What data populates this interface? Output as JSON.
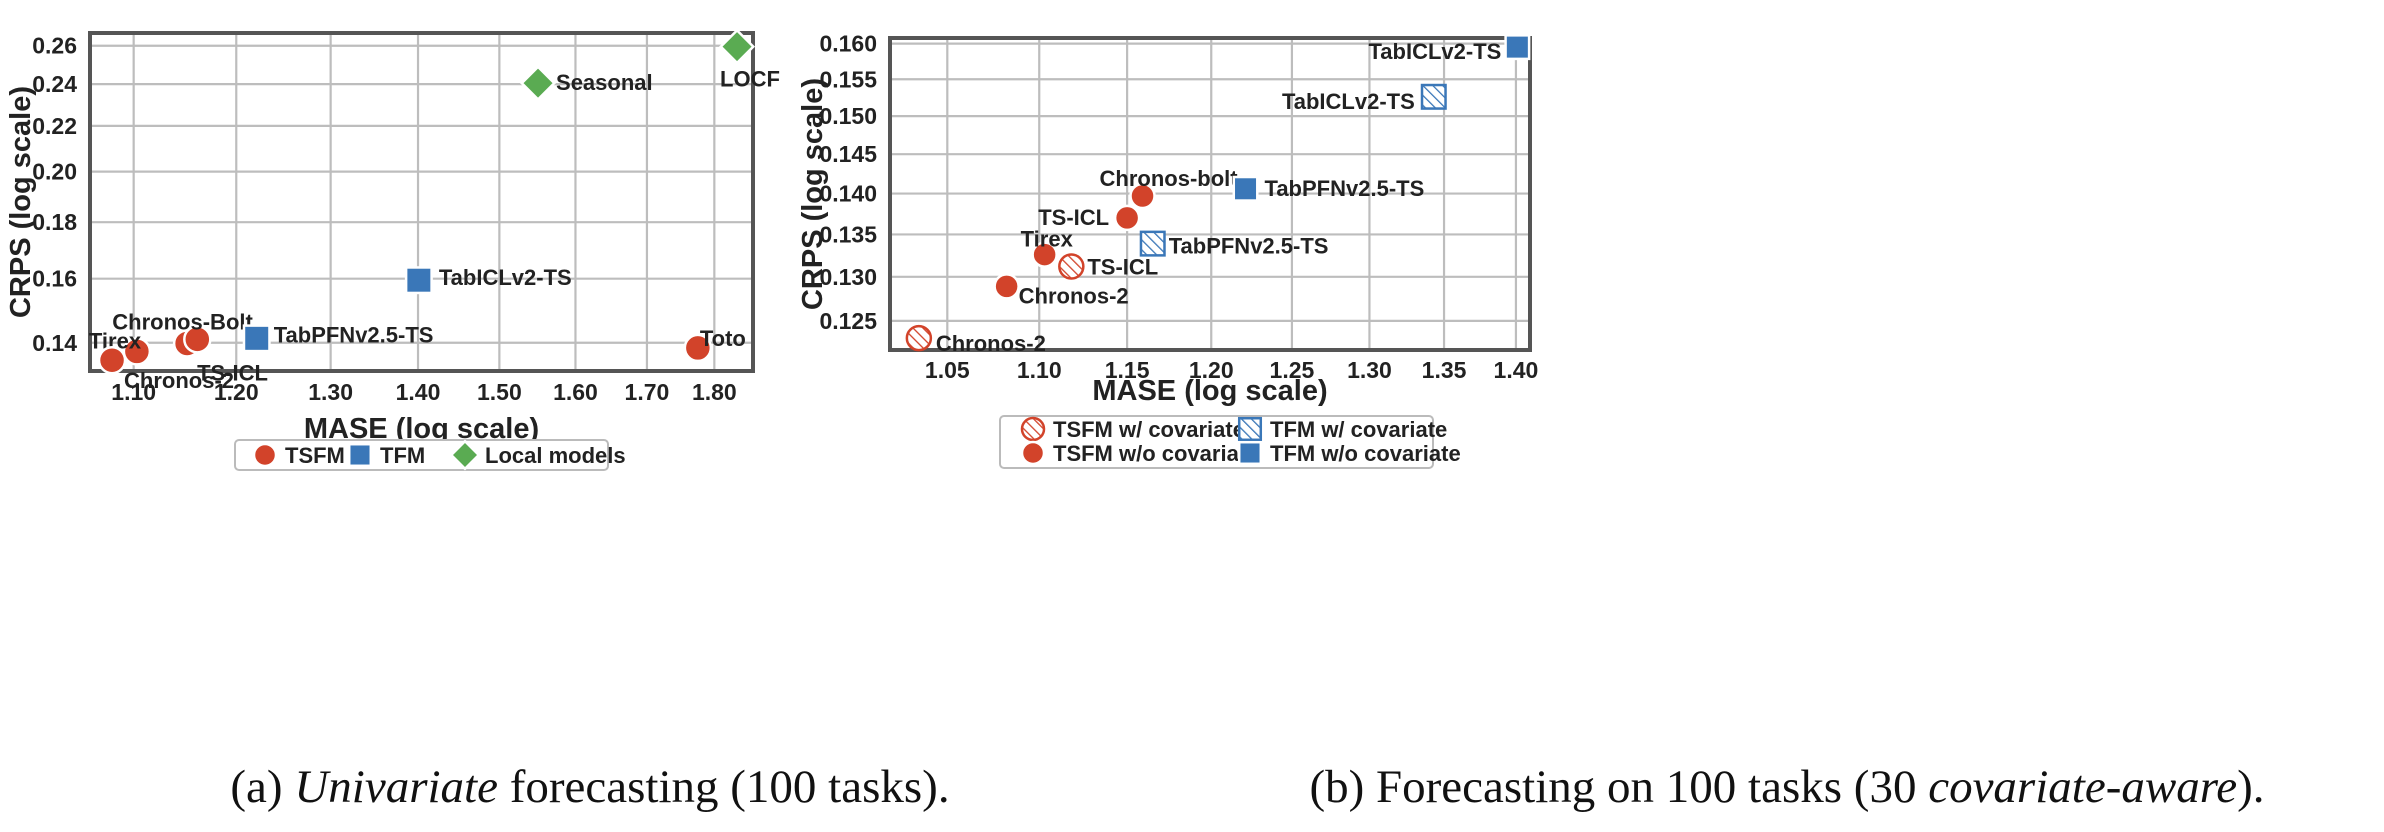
{
  "chart_data": [
    {
      "type": "scatter",
      "xlabel": "MASE (log scale)",
      "ylabel": "CRPS (log scale)",
      "xscale": "log",
      "yscale": "log",
      "xlim": [
        1.06,
        1.86
      ],
      "ylim": [
        0.132,
        0.267
      ],
      "xticks": [
        1.1,
        1.2,
        1.3,
        1.4,
        1.5,
        1.6,
        1.7,
        1.8
      ],
      "xtick_labels": [
        "1.10",
        "1.20",
        "1.30",
        "1.40",
        "1.50",
        "1.60",
        "1.70",
        "1.80"
      ],
      "yticks": [
        0.14,
        0.16,
        0.18,
        0.2,
        0.22,
        0.24,
        0.26
      ],
      "ytick_labels": [
        "0.14",
        "0.16",
        "0.18",
        "0.20",
        "0.22",
        "0.24",
        "0.26"
      ],
      "grid": true,
      "legend_position": "bottom-center",
      "legend": [
        {
          "label": "TSFM",
          "marker": "circle",
          "color": "#d2432a"
        },
        {
          "label": "TFM",
          "marker": "square",
          "color": "#3a77b8"
        },
        {
          "label": "Local models",
          "marker": "diamond",
          "color": "#5aab52"
        }
      ],
      "points": [
        {
          "label": "Tirex",
          "x": 1.103,
          "y": 0.1375,
          "group": "TSFM",
          "marker": "circle",
          "color": "#d2432a"
        },
        {
          "label": "Chronos-2",
          "x": 1.08,
          "y": 0.135,
          "group": "TSFM",
          "marker": "circle",
          "color": "#d2432a"
        },
        {
          "label": "TS-ICL",
          "x": 1.151,
          "y": 0.1398,
          "group": "TSFM",
          "marker": "circle",
          "color": "#d2432a"
        },
        {
          "label": "Chronos-Bolt",
          "x": 1.161,
          "y": 0.141,
          "group": "TSFM",
          "marker": "circle",
          "color": "#d2432a"
        },
        {
          "label": "Toto",
          "x": 1.775,
          "y": 0.1385,
          "group": "TSFM",
          "marker": "circle",
          "color": "#d2432a"
        },
        {
          "label": "TabPFNv2.5-TS",
          "x": 1.221,
          "y": 0.1413,
          "group": "TFM",
          "marker": "square",
          "color": "#3a77b8"
        },
        {
          "label": "TabICLv2-TS",
          "x": 1.401,
          "y": 0.1595,
          "group": "TFM",
          "marker": "square",
          "color": "#3a77b8"
        },
        {
          "label": "Seasonal",
          "x": 1.55,
          "y": 0.2405,
          "group": "Local models",
          "marker": "diamond",
          "color": "#5aab52"
        },
        {
          "label": "LOCF",
          "x": 1.835,
          "y": 0.2595,
          "group": "Local models",
          "marker": "diamond",
          "color": "#5aab52"
        }
      ],
      "caption": {
        "prefix": "(a) ",
        "emphasis": "Univariate",
        "suffix": " forecasting (100 tasks)."
      }
    },
    {
      "type": "scatter",
      "xlabel": "MASE (log scale)",
      "ylabel": "CRPS (log scale)",
      "xscale": "log",
      "yscale": "log",
      "xlim": [
        1.02,
        1.41
      ],
      "ylim": [
        0.1218,
        0.1608
      ],
      "xticks": [
        1.05,
        1.1,
        1.15,
        1.2,
        1.25,
        1.3,
        1.35,
        1.4
      ],
      "xtick_labels": [
        "1.05",
        "1.10",
        "1.15",
        "1.20",
        "1.25",
        "1.30",
        "1.35",
        "1.40"
      ],
      "yticks": [
        0.125,
        0.13,
        0.135,
        0.14,
        0.145,
        0.15,
        0.155,
        0.16
      ],
      "ytick_labels": [
        "0.125",
        "0.130",
        "0.135",
        "0.140",
        "0.145",
        "0.150",
        "0.155",
        "0.160"
      ],
      "grid": true,
      "legend_position": "bottom-center",
      "legend": [
        {
          "label": "TSFM w/ covariate",
          "marker": "circle",
          "color": "#d2432a",
          "hatched": true
        },
        {
          "label": "TFM w/ covariate",
          "marker": "square",
          "color": "#3a77b8",
          "hatched": true
        },
        {
          "label": "TSFM w/o covariate",
          "marker": "circle",
          "color": "#d2432a",
          "hatched": false
        },
        {
          "label": "TFM w/o covariate",
          "marker": "square",
          "color": "#3a77b8",
          "hatched": false
        }
      ],
      "points": [
        {
          "label": "Chronos-2",
          "x": 1.035,
          "y": 0.1231,
          "group": "TSFM w/ covariate",
          "marker": "circle",
          "color": "#d2432a",
          "hatched": true
        },
        {
          "label": "TS-ICL",
          "x": 1.118,
          "y": 0.1312,
          "group": "TSFM w/ covariate",
          "marker": "circle",
          "color": "#d2432a",
          "hatched": true
        },
        {
          "label": "TabPFNv2.5-TS",
          "x": 1.165,
          "y": 0.1339,
          "group": "TFM w/ covariate",
          "marker": "square",
          "color": "#3a77b8",
          "hatched": true
        },
        {
          "label": "TabICLv2-TS",
          "x": 1.343,
          "y": 0.1526,
          "group": "TFM w/ covariate",
          "marker": "square",
          "color": "#3a77b8",
          "hatched": true
        },
        {
          "label": "Chronos-2",
          "x": 1.082,
          "y": 0.1289,
          "group": "TSFM w/o covariate",
          "marker": "circle",
          "color": "#d2432a",
          "hatched": false
        },
        {
          "label": "Tirex",
          "x": 1.103,
          "y": 0.1326,
          "group": "TSFM w/o covariate",
          "marker": "circle",
          "color": "#d2432a",
          "hatched": false
        },
        {
          "label": "TS-ICL",
          "x": 1.15,
          "y": 0.137,
          "group": "TSFM w/o covariate",
          "marker": "circle",
          "color": "#d2432a",
          "hatched": false
        },
        {
          "label": "Chronos-bolt",
          "x": 1.159,
          "y": 0.1397,
          "group": "TSFM w/o covariate",
          "marker": "circle",
          "color": "#d2432a",
          "hatched": false
        },
        {
          "label": "TabPFNv2.5-TS",
          "x": 1.221,
          "y": 0.1406,
          "group": "TFM w/o covariate",
          "marker": "square",
          "color": "#3a77b8",
          "hatched": false
        },
        {
          "label": "TabICLv2-TS",
          "x": 1.401,
          "y": 0.1595,
          "group": "TFM w/o covariate",
          "marker": "square",
          "color": "#3a77b8",
          "hatched": false
        }
      ],
      "caption": {
        "prefix": "(b) Forecasting on 100 tasks (30 ",
        "emphasis": "covariate-aware",
        "suffix": ")."
      }
    }
  ]
}
